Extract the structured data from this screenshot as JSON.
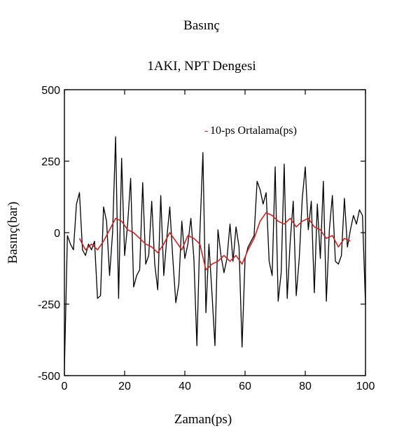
{
  "chart_data": {
    "type": "line",
    "title": "Basınç",
    "subtitle": "1AKI, NPT Dengesi",
    "xlabel": "Zaman(ps)",
    "ylabel": "Basınç(bar)",
    "xlim": [
      0,
      100
    ],
    "ylim": [
      -500,
      500
    ],
    "xticks": [
      "0",
      "20",
      "40",
      "60",
      "80",
      "100"
    ],
    "yticks": [
      "500",
      "250",
      "0",
      "-250",
      "-500"
    ],
    "grid": false,
    "legend_position": "top-right",
    "series": [
      {
        "color": "#000000",
        "x": [
          0,
          1,
          2,
          3,
          4,
          5,
          6,
          7,
          8,
          9,
          10,
          11,
          12,
          13,
          14,
          15,
          16,
          17,
          18,
          19,
          20,
          21,
          22,
          23,
          24,
          25,
          26,
          27,
          28,
          29,
          30,
          31,
          32,
          33,
          34,
          35,
          36,
          37,
          38,
          39,
          40,
          41,
          42,
          43,
          44,
          45,
          46,
          47,
          48,
          49,
          50,
          51,
          52,
          53,
          54,
          55,
          56,
          57,
          58,
          59,
          60,
          61,
          62,
          63,
          64,
          65,
          66,
          67,
          68,
          69,
          70,
          71,
          72,
          73,
          74,
          75,
          76,
          77,
          78,
          79,
          80,
          81,
          82,
          83,
          84,
          85,
          86,
          87,
          88,
          89,
          90,
          91,
          92,
          93,
          94,
          95,
          96,
          97,
          98,
          99,
          100
        ],
        "values": [
          -480,
          -10,
          -40,
          -60,
          100,
          140,
          -60,
          -80,
          -40,
          -60,
          -30,
          -230,
          -220,
          90,
          40,
          -150,
          0,
          335,
          -230,
          260,
          -80,
          30,
          190,
          -190,
          -150,
          -130,
          175,
          -110,
          -80,
          110,
          -110,
          -200,
          130,
          -150,
          -20,
          90,
          -90,
          -245,
          -180,
          40,
          -90,
          -40,
          50,
          -90,
          -395,
          0,
          280,
          -280,
          -40,
          -210,
          -395,
          10,
          -80,
          -140,
          -90,
          30,
          -100,
          20,
          -50,
          -400,
          -90,
          -50,
          -30,
          -10,
          180,
          150,
          100,
          140,
          -100,
          -150,
          230,
          -240,
          -140,
          240,
          -230,
          -30,
          110,
          -220,
          -90,
          120,
          230,
          10,
          110,
          -210,
          100,
          -90,
          180,
          -240,
          10,
          130,
          -100,
          -110,
          -80,
          120,
          -50,
          10,
          60,
          30,
          80,
          60,
          -250
        ],
        "name": ""
      },
      {
        "name": "10-ps Ortalama(ps)",
        "color": "#cc2222",
        "x": [
          5,
          7,
          9,
          11,
          13,
          15,
          17,
          19,
          21,
          23,
          25,
          27,
          29,
          31,
          33,
          35,
          37,
          39,
          41,
          43,
          45,
          47,
          49,
          51,
          53,
          55,
          57,
          59,
          61,
          63,
          65,
          67,
          69,
          71,
          73,
          75,
          77,
          79,
          81,
          83,
          85,
          87,
          89,
          91,
          93,
          95
        ],
        "values": [
          -20,
          -60,
          -40,
          -60,
          -30,
          10,
          50,
          40,
          10,
          0,
          -20,
          -40,
          -50,
          -70,
          -40,
          0,
          -30,
          -60,
          -10,
          -20,
          -40,
          -130,
          -110,
          -100,
          -80,
          -100,
          -80,
          -110,
          -60,
          -20,
          40,
          70,
          60,
          40,
          30,
          50,
          20,
          40,
          50,
          20,
          10,
          -20,
          -10,
          -50,
          -20,
          -30
        ]
      }
    ]
  }
}
